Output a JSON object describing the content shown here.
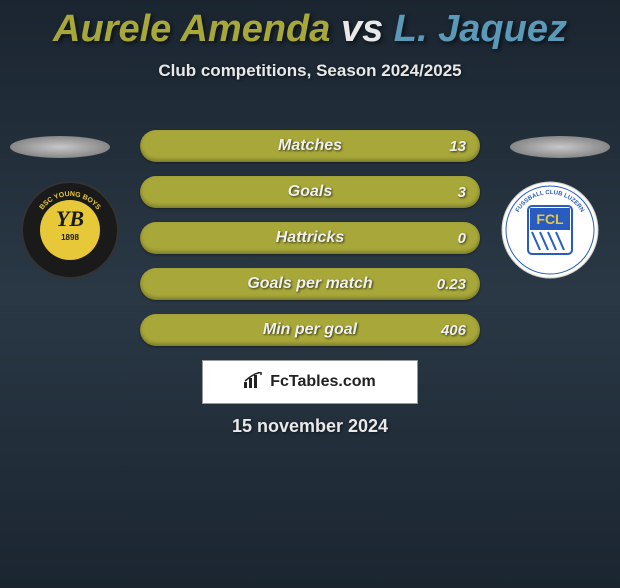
{
  "title": {
    "player1": "Aurele Amenda",
    "vs": "vs",
    "player2": "L. Jaquez",
    "player1_color": "#a8a83a",
    "player2_color": "#5a99b8"
  },
  "subtitle": "Club competitions, Season 2024/2025",
  "stats": [
    {
      "label": "Matches",
      "value": "13",
      "bg": "#a8a83a"
    },
    {
      "label": "Goals",
      "value": "3",
      "bg": "#a8a83a"
    },
    {
      "label": "Hattricks",
      "value": "0",
      "bg": "#a8a83a"
    },
    {
      "label": "Goals per match",
      "value": "0.23",
      "bg": "#a8a83a"
    },
    {
      "label": "Min per goal",
      "value": "406",
      "bg": "#a8a83a"
    }
  ],
  "left_team": {
    "name": "BSC Young Boys",
    "year": "1898",
    "outer_color": "#1a1a1a",
    "inner_color": "#e6c838",
    "text_color": "#1a1a1a"
  },
  "right_team": {
    "name": "FCL Fussball Club Luzern",
    "outer_ring": "#ffffff",
    "accent": "#2a5cbf",
    "text_color": "#2a5cbf"
  },
  "site": "FcTables.com",
  "date": "15 november 2024",
  "background_gradient": [
    "#1a2530",
    "#2a3845",
    "#1a2530"
  ]
}
